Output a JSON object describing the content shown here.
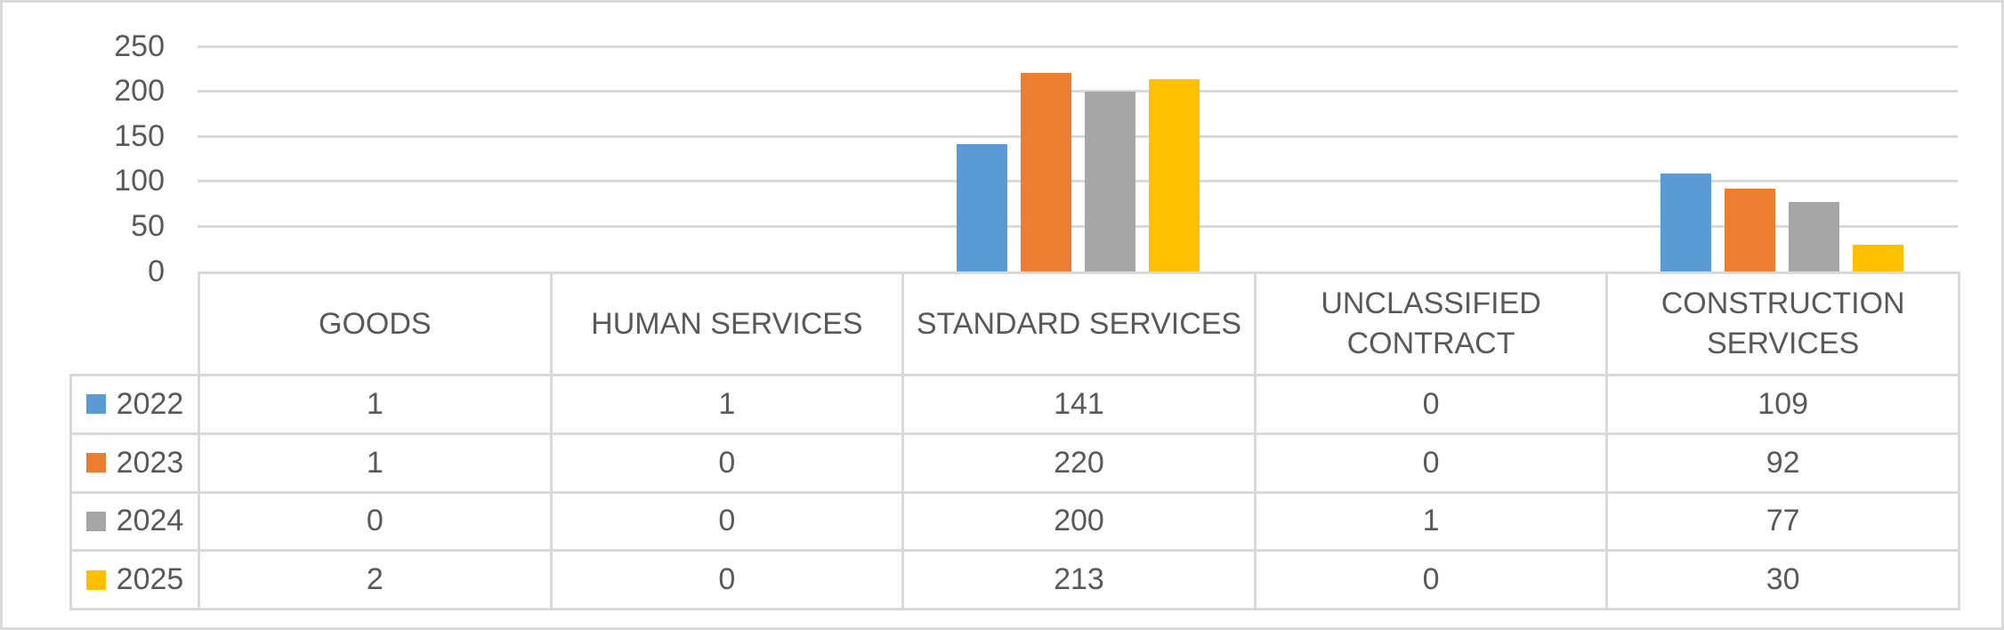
{
  "chart_data": {
    "type": "bar",
    "title": "",
    "categories": [
      "GOODS",
      "HUMAN SERVICES",
      "STANDARD SERVICES",
      "UNCLASSIFIED CONTRACT",
      "CONSTRUCTION SERVICES"
    ],
    "series": [
      {
        "name": "2022",
        "color": "#5B9BD5",
        "values": [
          1,
          1,
          141,
          0,
          109
        ]
      },
      {
        "name": "2023",
        "color": "#ED7D31",
        "values": [
          1,
          0,
          220,
          0,
          92
        ]
      },
      {
        "name": "2024",
        "color": "#A5A5A5",
        "values": [
          0,
          0,
          200,
          1,
          77
        ]
      },
      {
        "name": "2025",
        "color": "#FFC000",
        "values": [
          2,
          0,
          213,
          0,
          30
        ]
      }
    ],
    "y_axis": {
      "min": 0,
      "max": 250,
      "tick_interval": 50,
      "tick_labels": [
        "0",
        "50",
        "100",
        "150",
        "200",
        "250"
      ]
    },
    "xlabel": "",
    "ylabel": "",
    "grid": true,
    "legend_position": "data-table-left-column",
    "data_table_shown": true
  },
  "colors": {
    "background": "#FFFFFF",
    "outer_border": "#D9D9D9",
    "gridline": "#D9D9D9",
    "table_border": "#D9D9D9",
    "text": "#595959"
  }
}
